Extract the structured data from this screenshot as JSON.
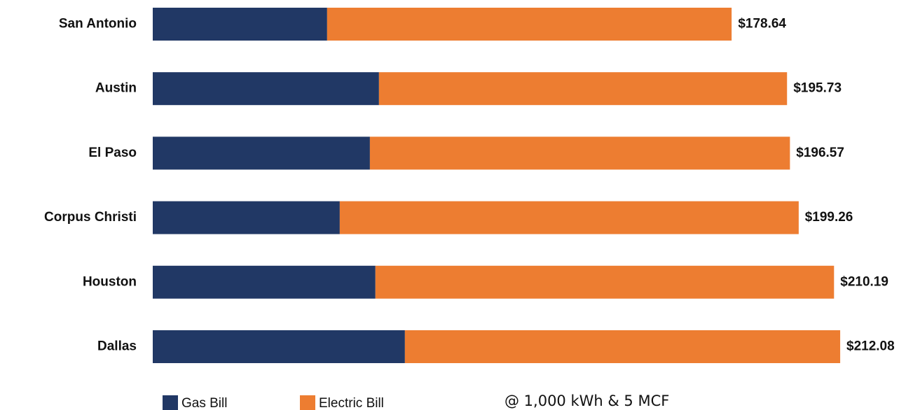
{
  "chart_data": {
    "type": "stacked-barh",
    "categories": [
      "San Antonio",
      "Austin",
      "El Paso",
      "Corpus Christi",
      "Houston",
      "Dallas"
    ],
    "series": [
      {
        "name": "Gas Bill",
        "color": "#213865",
        "values": [
          53.8,
          69.8,
          67.0,
          57.7,
          68.7,
          77.8
        ]
      },
      {
        "name": "Electric Bill",
        "color": "#ed7d31",
        "values": [
          124.8,
          125.9,
          129.6,
          141.6,
          141.5,
          134.3
        ]
      }
    ],
    "totals": [
      178.64,
      195.73,
      196.57,
      199.26,
      210.19,
      212.08
    ],
    "total_labels": [
      "$178.64",
      "$195.73",
      "$196.57",
      "$199.26",
      "$210.19",
      "$212.08"
    ],
    "note": "@ 1,000 kWh & 5 MCF"
  }
}
